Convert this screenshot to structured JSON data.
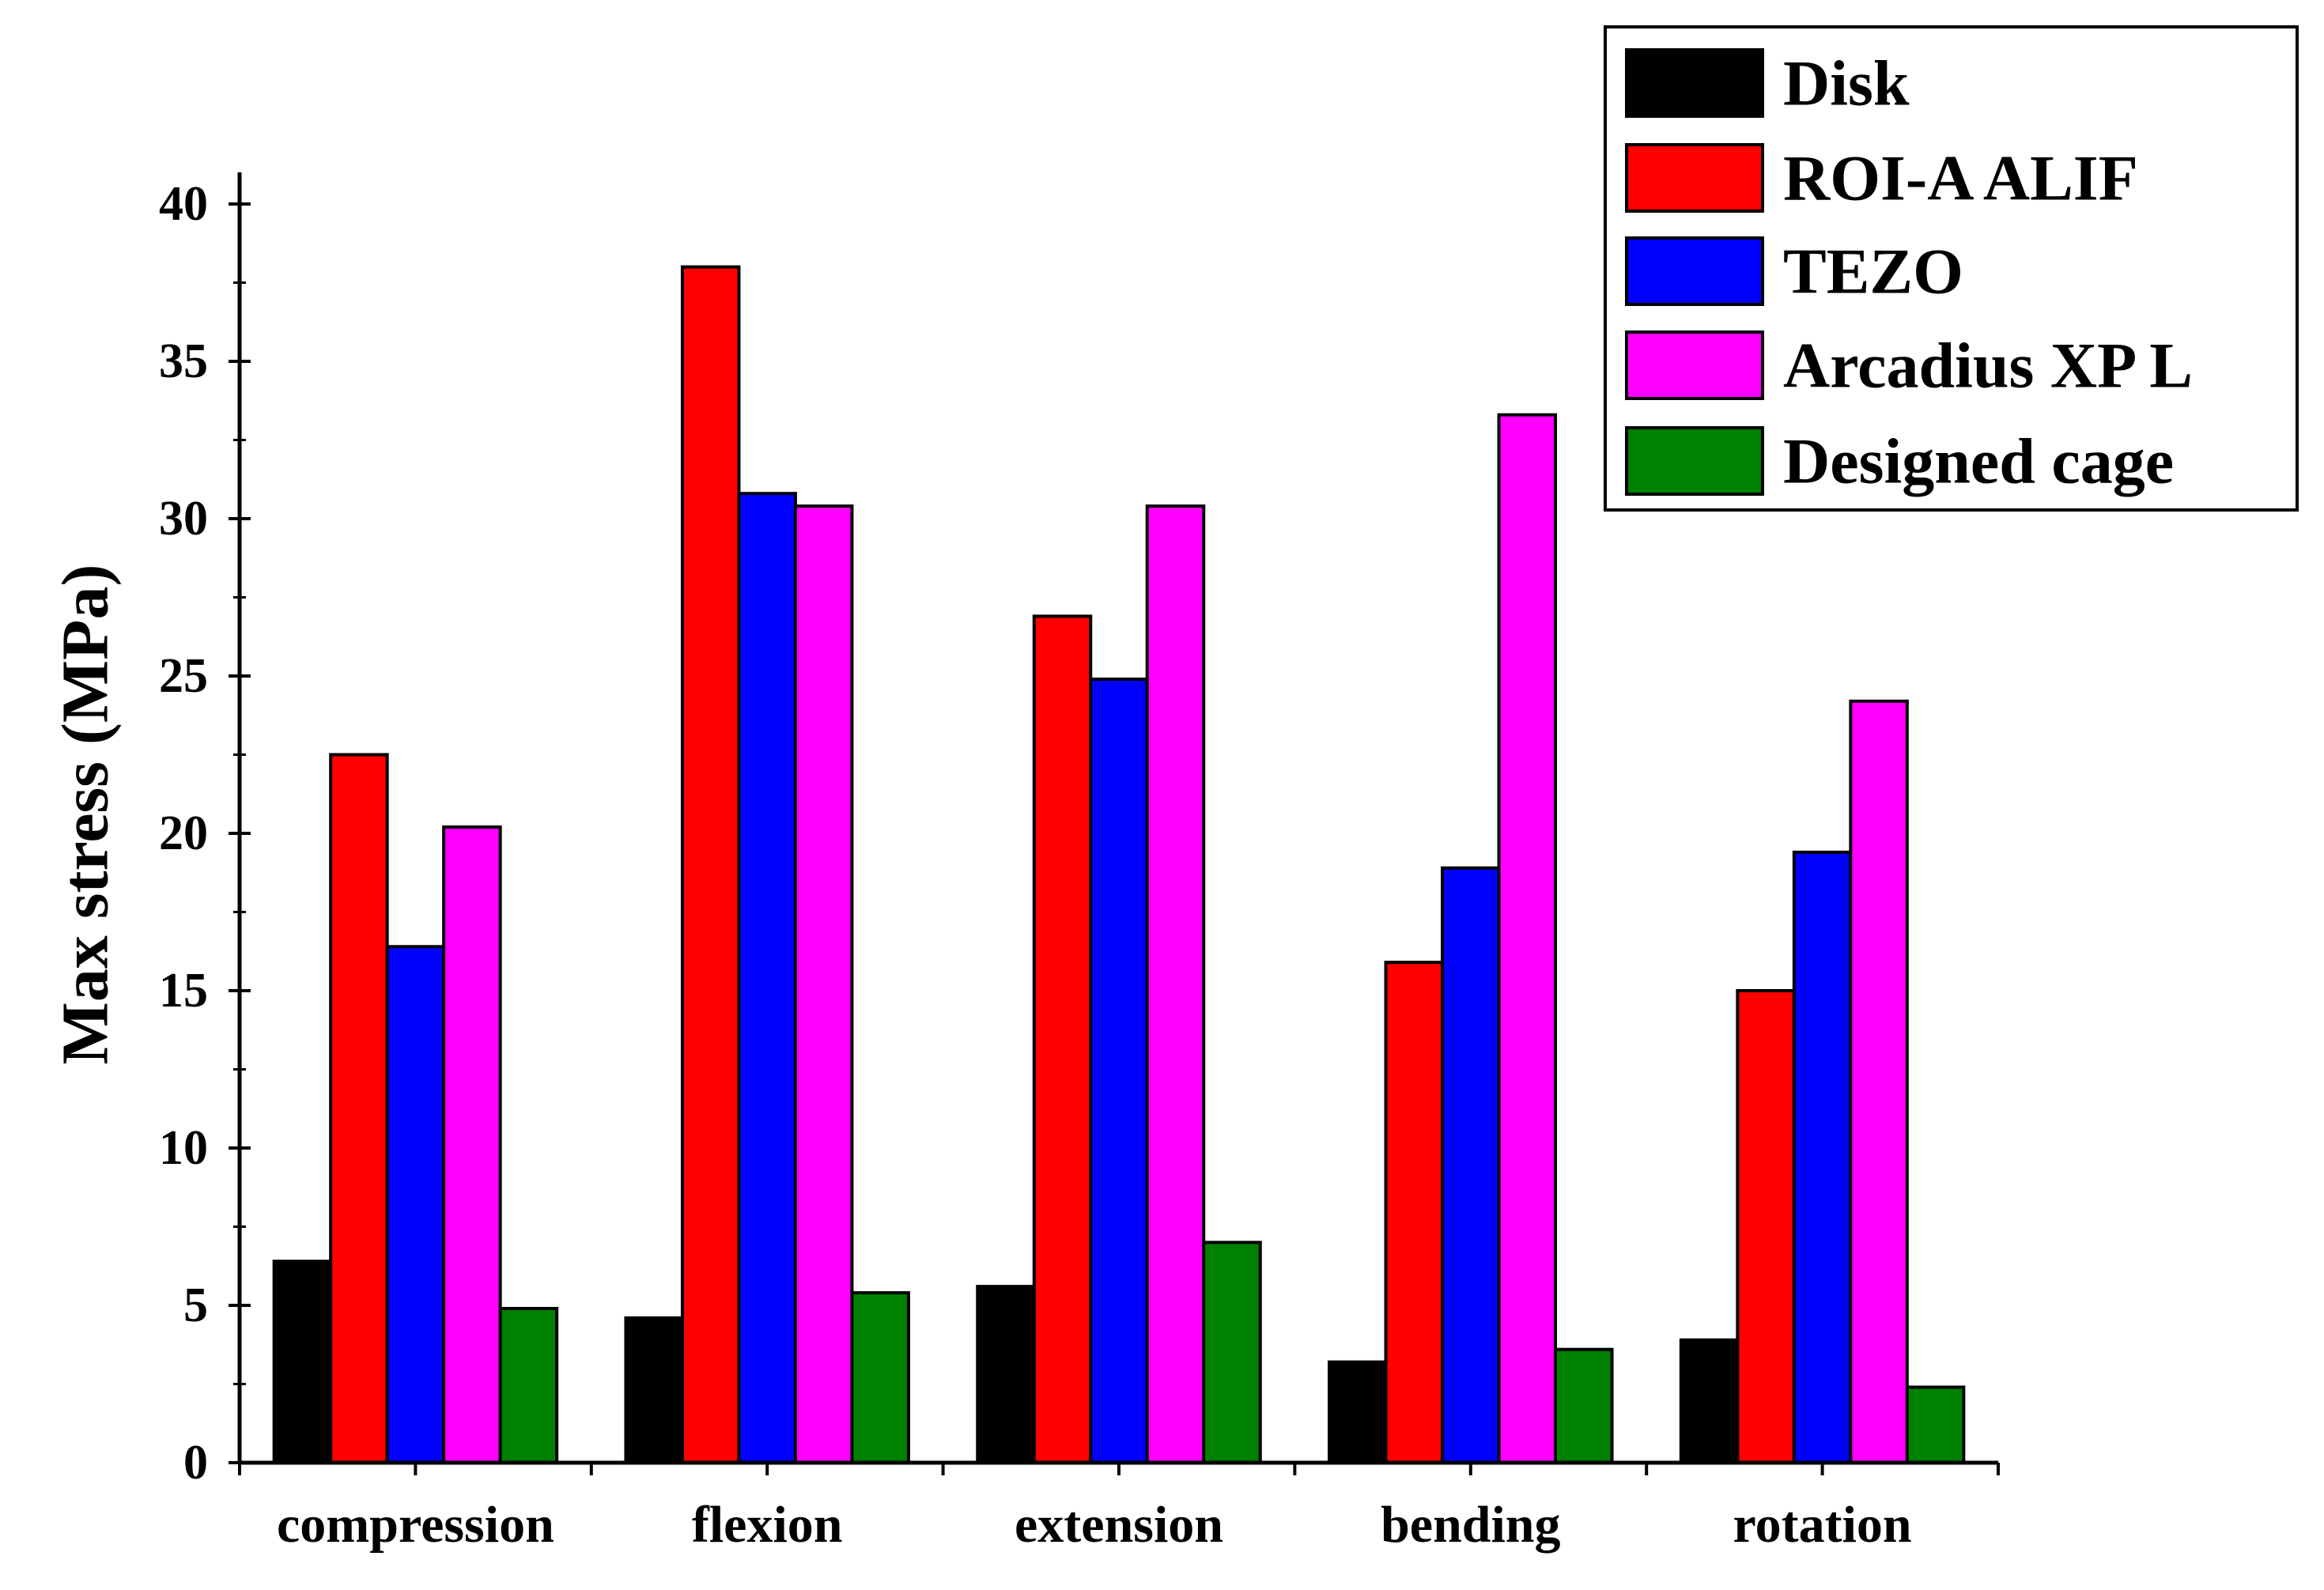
{
  "chart_data": {
    "type": "bar",
    "title": "",
    "xlabel": "",
    "ylabel": "Max stress (MPa)",
    "ylim": [
      0,
      40
    ],
    "yticks": [
      0,
      5,
      10,
      15,
      20,
      25,
      30,
      35,
      40
    ],
    "categories": [
      "compression",
      "flexion",
      "extension",
      "bending",
      "rotation"
    ],
    "series": [
      {
        "name": "Disk",
        "color": "#000000",
        "values": [
          6.4,
          4.6,
          5.6,
          3.2,
          3.9
        ]
      },
      {
        "name": "ROI-A ALIF",
        "color": "#ff0000",
        "values": [
          22.5,
          38.0,
          26.9,
          15.9,
          15.0
        ]
      },
      {
        "name": "TEZO",
        "color": "#0000ff",
        "values": [
          16.4,
          30.8,
          24.9,
          18.9,
          19.4
        ]
      },
      {
        "name": "Arcadius XP L",
        "color": "#ff00ff",
        "values": [
          20.2,
          30.4,
          30.4,
          33.3,
          24.2
        ]
      },
      {
        "name": "Designed cage",
        "color": "#008000",
        "values": [
          4.9,
          5.4,
          7.0,
          3.6,
          2.4
        ]
      }
    ],
    "legend_position": "top-right",
    "grid": false
  }
}
